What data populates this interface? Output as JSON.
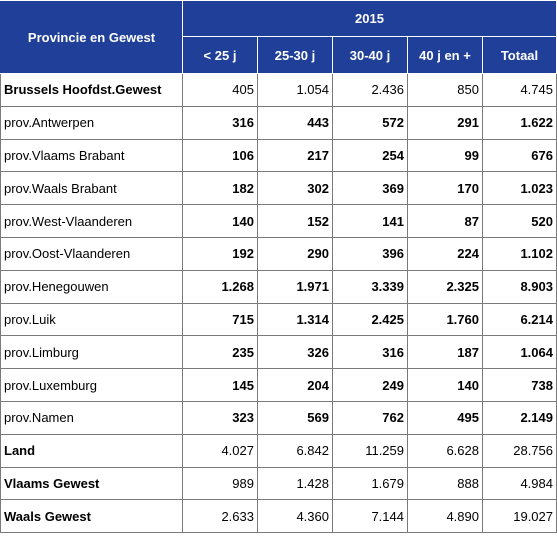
{
  "table": {
    "corner_header": "Provincie en Gewest",
    "year_header": "2015",
    "column_headers": [
      "< 25 j",
      "25-30 j",
      "30-40 j",
      "40 j en +",
      "Totaal"
    ],
    "rows": [
      {
        "label": "Brussels Hoofdst.Gewest",
        "bold_label": true,
        "values": [
          "405",
          "1.054",
          "2.436",
          "850",
          "4.745"
        ]
      },
      {
        "label": "prov.Antwerpen",
        "bold_label": false,
        "values": [
          "316",
          "443",
          "572",
          "291",
          "1.622"
        ]
      },
      {
        "label": "prov.Vlaams Brabant",
        "bold_label": false,
        "values": [
          "106",
          "217",
          "254",
          "99",
          "676"
        ]
      },
      {
        "label": "prov.Waals Brabant",
        "bold_label": false,
        "values": [
          "182",
          "302",
          "369",
          "170",
          "1.023"
        ]
      },
      {
        "label": "prov.West-Vlaanderen",
        "bold_label": false,
        "values": [
          "140",
          "152",
          "141",
          "87",
          "520"
        ]
      },
      {
        "label": "prov.Oost-Vlaanderen",
        "bold_label": false,
        "values": [
          "192",
          "290",
          "396",
          "224",
          "1.102"
        ]
      },
      {
        "label": "prov.Henegouwen",
        "bold_label": false,
        "values": [
          "1.268",
          "1.971",
          "3.339",
          "2.325",
          "8.903"
        ]
      },
      {
        "label": "prov.Luik",
        "bold_label": false,
        "values": [
          "715",
          "1.314",
          "2.425",
          "1.760",
          "6.214"
        ]
      },
      {
        "label": "prov.Limburg",
        "bold_label": false,
        "values": [
          "235",
          "326",
          "316",
          "187",
          "1.064"
        ]
      },
      {
        "label": "prov.Luxemburg",
        "bold_label": false,
        "values": [
          "145",
          "204",
          "249",
          "140",
          "738"
        ]
      },
      {
        "label": "prov.Namen",
        "bold_label": false,
        "values": [
          "323",
          "569",
          "762",
          "495",
          "2.149"
        ]
      },
      {
        "label": "Land",
        "bold_label": true,
        "values": [
          "4.027",
          "6.842",
          "11.259",
          "6.628",
          "28.756"
        ]
      },
      {
        "label": "Vlaams Gewest",
        "bold_label": true,
        "values": [
          "989",
          "1.428",
          "1.679",
          "888",
          "4.984"
        ]
      },
      {
        "label": "Waals Gewest",
        "bold_label": true,
        "values": [
          "2.633",
          "4.360",
          "7.144",
          "4.890",
          "19.027"
        ]
      }
    ]
  },
  "colors": {
    "header_background": "#1f3f99",
    "header_text": "#ffffff",
    "grid_lines": "#7a7a7a"
  }
}
